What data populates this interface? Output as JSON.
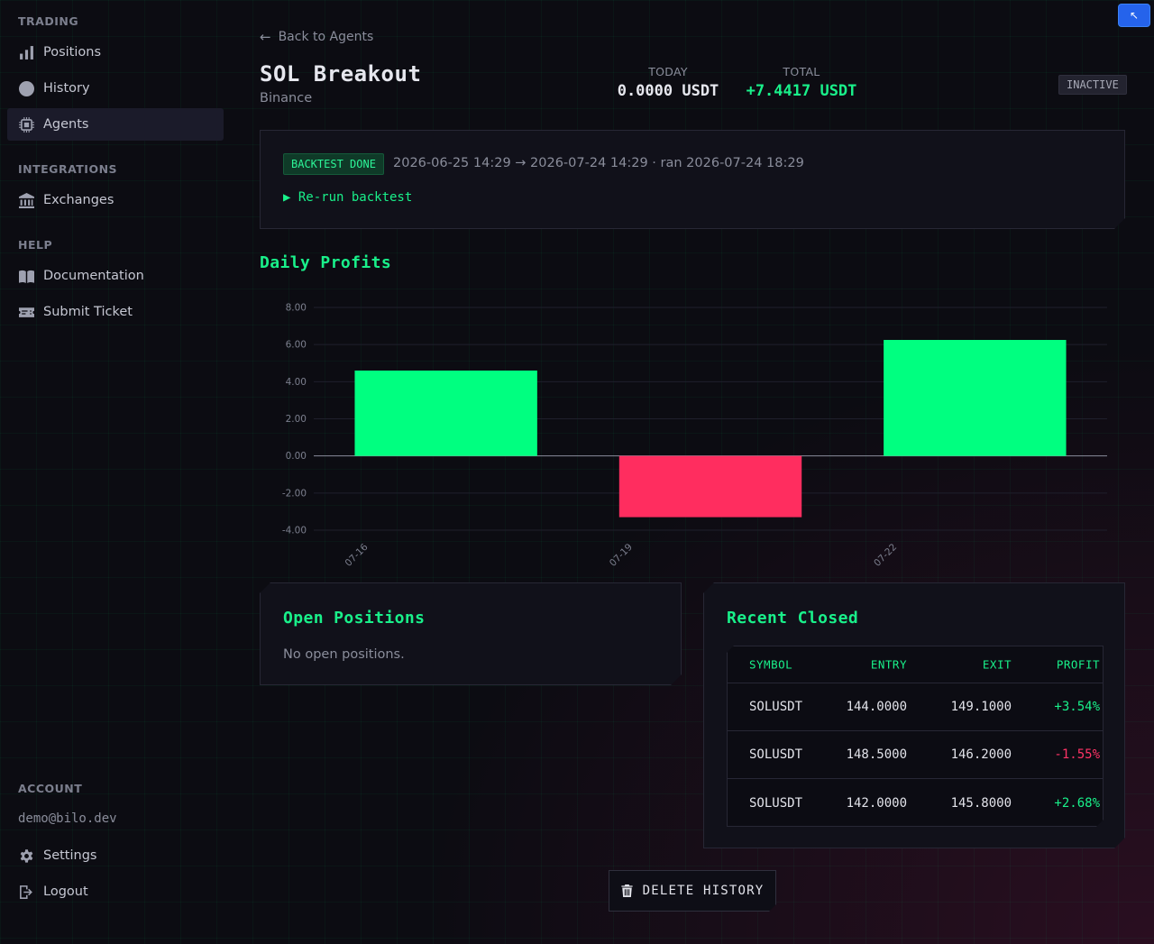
{
  "sidebar": {
    "trading_heading": "TRADING",
    "positions": "Positions",
    "history": "History",
    "agents": "Agents",
    "integrations_heading": "INTEGRATIONS",
    "exchanges": "Exchanges",
    "help_heading": "HELP",
    "documentation": "Documentation",
    "submit_ticket": "Submit Ticket",
    "account_heading": "ACCOUNT",
    "email": "demo@bilo.dev",
    "settings": "Settings",
    "logout": "Logout"
  },
  "corner_button": {
    "glyph": "↖"
  },
  "header": {
    "back_label": "Back to Agents",
    "agent_name": "SOL Breakout",
    "exchange": "Binance",
    "today_label": "TODAY",
    "today_value": "0.0000 USDT",
    "total_label": "TOTAL",
    "total_value": "+7.4417 USDT",
    "status": "INACTIVE"
  },
  "backtest": {
    "badge": "BACKTEST DONE",
    "range": "2026-06-25 14:29 → 2026-07-24 14:29 · ran 2026-07-24 18:29",
    "rerun_label": "▶ Re-run backtest"
  },
  "daily_profits": {
    "title": "Daily Profits"
  },
  "chart_data": {
    "type": "bar",
    "title": "Daily Profits",
    "categories": [
      "07-16",
      "07-19",
      "07-22"
    ],
    "values": [
      4.6,
      -3.3,
      6.25
    ],
    "ylim": [
      -4,
      8
    ],
    "yticks": [
      "8.00",
      "6.00",
      "4.00",
      "2.00",
      "0.00",
      "-2.00",
      "-4.00"
    ],
    "ytick_values": [
      8,
      6,
      4,
      2,
      0,
      -2,
      -4
    ],
    "grid": true,
    "colors": {
      "positive": "#00ff80",
      "negative": "#ff2d5f"
    }
  },
  "open_positions": {
    "title": "Open Positions",
    "empty_text": "No open positions."
  },
  "recent_closed": {
    "title": "Recent Closed",
    "columns": {
      "symbol": "SYMBOL",
      "entry": "ENTRY",
      "exit": "EXIT",
      "profit": "PROFIT"
    },
    "rows": [
      {
        "symbol": "SOLUSDT",
        "entry": "144.0000",
        "exit": "149.1000",
        "profit": "+3.54%"
      },
      {
        "symbol": "SOLUSDT",
        "entry": "148.5000",
        "exit": "146.2000",
        "profit": "-1.55%"
      },
      {
        "symbol": "SOLUSDT",
        "entry": "142.0000",
        "exit": "145.8000",
        "profit": "+2.68%"
      }
    ]
  },
  "actions": {
    "delete_history": "DELETE HISTORY"
  }
}
